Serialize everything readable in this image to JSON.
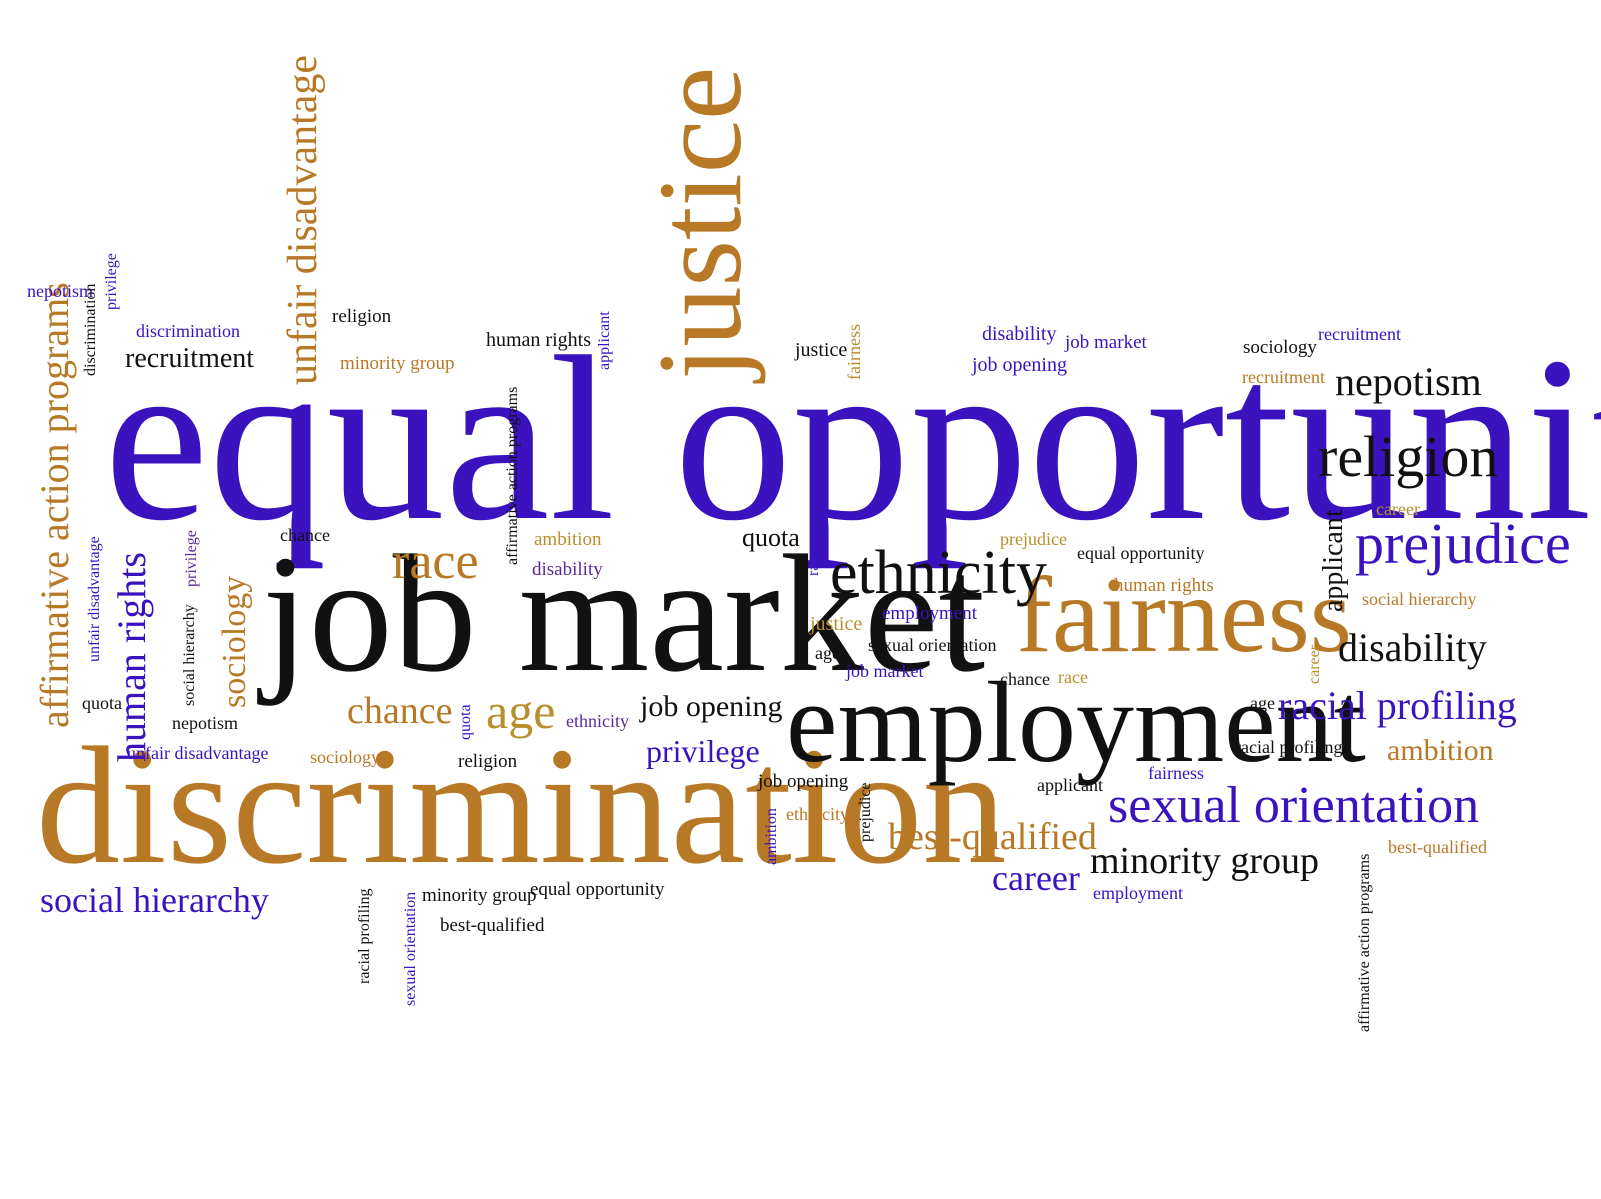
{
  "colors": {
    "blue": "#3a13bf",
    "orange": "#b87926",
    "black": "#111111",
    "purple": "#5b2a95",
    "gold": "#b98e2c",
    "background": "#ffffff"
  },
  "words": [
    "equal opportunity",
    "job market",
    "discrimination",
    "employment",
    "justice",
    "fairness",
    "unfair disadvantage",
    "affirmative action programs",
    "ethnicity",
    "religion",
    "prejudice",
    "nepotism",
    "race",
    "sexual orientation",
    "social hierarchy",
    "human rights",
    "sociology",
    "age",
    "chance",
    "privilege",
    "disability",
    "racial profiling",
    "ambition",
    "minority group",
    "best-qualified",
    "career",
    "recruitment",
    "job opening",
    "applicant",
    "quota",
    "employment",
    "discrimination",
    "human rights",
    "minority group",
    "justice",
    "fairness",
    "disability",
    "job opening",
    "job market",
    "sociology",
    "recruitment",
    "nepotism",
    "privilege",
    "discrimination",
    "affirmative action programs",
    "chance",
    "ambition",
    "disability",
    "quota",
    "race",
    "prejudice",
    "equal opportunity",
    "human rights",
    "unfair disadvantage",
    "social hierarchy",
    "privilege",
    "employment",
    "justice",
    "sexual orientation",
    "age",
    "job market",
    "career",
    "quota",
    "nepotism",
    "unfair disadvantage",
    "sociology",
    "religion",
    "ethnicity",
    "quota",
    "race",
    "chance",
    "age",
    "racial profiling",
    "job opening",
    "ethnicity",
    "ambition",
    "prejudice",
    "applicant",
    "racial profiling",
    "sexual orientation",
    "minority group",
    "equal opportunity",
    "best-qualified",
    "employment",
    "affirmative action programs",
    "best-qualified",
    "religion",
    "applicant",
    "social hierarchy",
    "career"
  ]
}
